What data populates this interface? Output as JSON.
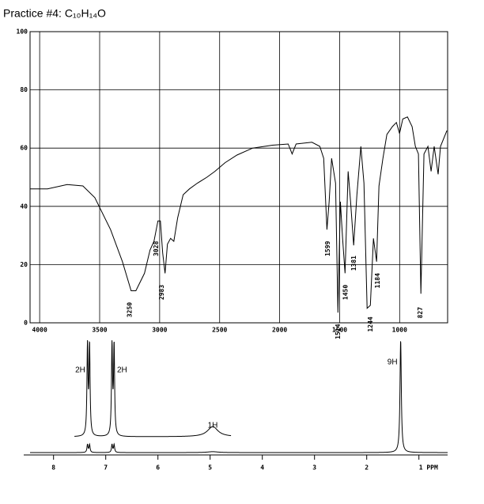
{
  "title": "Practice #4: C₁₀H₁₄O",
  "chart_data": [
    {
      "type": "line",
      "xlim": [
        4080,
        600
      ],
      "ylim": [
        0,
        100
      ],
      "xticks": [
        4000,
        3500,
        3000,
        2500,
        2000,
        1500,
        1000
      ],
      "yticks": [
        0,
        20,
        40,
        60,
        80,
        100
      ],
      "grid": true,
      "color": "#000000",
      "x": [
        4080,
        3935,
        3771,
        3640,
        3540,
        3409,
        3310,
        3238,
        3198,
        3126,
        3080,
        3047,
        3014,
        2994,
        2975,
        2955,
        2935,
        2909,
        2882,
        2850,
        2804,
        2751,
        2685,
        2606,
        2540,
        2455,
        2356,
        2225,
        2060,
        1929,
        1896,
        1863,
        1731,
        1665,
        1633,
        1606,
        1587,
        1567,
        1534,
        1514,
        1494,
        1475,
        1455,
        1429,
        1409,
        1383,
        1356,
        1323,
        1297,
        1271,
        1244,
        1218,
        1192,
        1172,
        1139,
        1106,
        1060,
        1027,
        1001,
        974,
        935,
        896,
        869,
        843,
        823,
        797,
        764,
        738,
        712,
        679,
        659,
        606
      ],
      "values": [
        46,
        46,
        47.5,
        47,
        43,
        32,
        21,
        11,
        11,
        17,
        25,
        28,
        35,
        35,
        24,
        17,
        27,
        29,
        28,
        36,
        44,
        46,
        48,
        50,
        52,
        55,
        57.6,
        60,
        61,
        61.4,
        58,
        61.4,
        62,
        60.6,
        56.5,
        32,
        41.6,
        56.5,
        48,
        3.5,
        41.6,
        29,
        17,
        52,
        41.6,
        26.6,
        44,
        60.6,
        48,
        5,
        6,
        29,
        21,
        47,
        56.5,
        64.7,
        67.4,
        68.8,
        65,
        70,
        70.7,
        67.4,
        60.6,
        58,
        10,
        58,
        60.6,
        52,
        60.6,
        51,
        60.6,
        66
      ],
      "peaks": [
        {
          "x": 3250,
          "y": 11
        },
        {
          "x": 3028,
          "y": 32
        },
        {
          "x": 2983,
          "y": 17
        },
        {
          "x": 1599,
          "y": 32
        },
        {
          "x": 1514,
          "y": 3.5
        },
        {
          "x": 1450,
          "y": 17
        },
        {
          "x": 1381,
          "y": 27
        },
        {
          "x": 1244,
          "y": 6
        },
        {
          "x": 1184,
          "y": 21
        },
        {
          "x": 827,
          "y": 10
        }
      ]
    },
    {
      "type": "nmr",
      "xlim": [
        8.45,
        0.45
      ],
      "inset_xlim": [
        7.6,
        4.6
      ],
      "xticks": [
        8,
        7,
        6,
        5,
        4,
        3,
        2,
        {
          "value": 1,
          "label": "1 PPM"
        }
      ],
      "signals": {
        "ppm": [
          7.35,
          7.31,
          6.88,
          6.84,
          4.95,
          1.35
        ],
        "height": [
          7,
          7,
          7,
          7,
          0.8,
          100
        ],
        "width": [
          0.012,
          0.012,
          0.012,
          0.012,
          0.12,
          0.015
        ]
      },
      "integrations": [
        {
          "label": "2H",
          "ppm": 7.33
        },
        {
          "label": "2H",
          "ppm": 6.86
        },
        {
          "label": "1H",
          "ppm": 4.95
        },
        {
          "label": "9H",
          "ppm": 1.35
        }
      ]
    }
  ]
}
